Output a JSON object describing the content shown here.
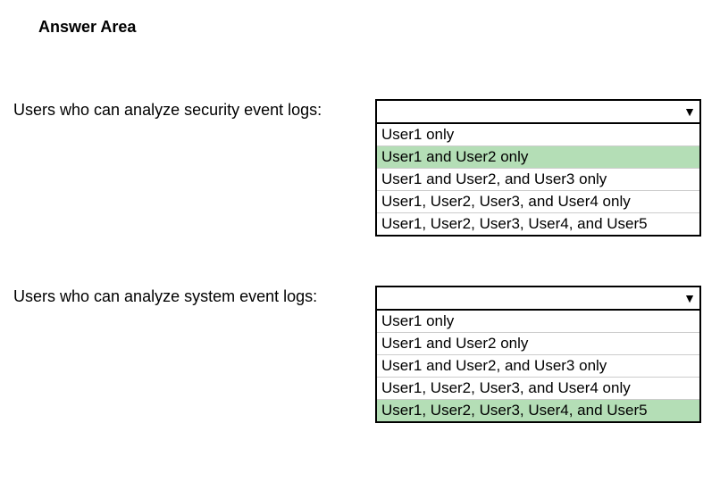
{
  "title": "Answer Area",
  "questions": [
    {
      "label": "Users who can analyze security event logs:",
      "options": [
        "User1 only",
        "User1 and User2 only",
        "User1 and User2, and User3 only",
        "User1, User2, User3, and User4 only",
        "User1, User2, User3, User4, and User5"
      ],
      "selected_index": 1,
      "selected_color": "#b4deb6",
      "border_color": "#000000"
    },
    {
      "label": "Users who can analyze system event logs:",
      "options": [
        "User1 only",
        "User1 and User2 only",
        "User1 and User2, and User3 only",
        "User1, User2, User3, and User4 only",
        "User1, User2, User3, User4, and User5"
      ],
      "selected_index": 4,
      "selected_color": "#b4deb6",
      "border_color": "#000000"
    }
  ]
}
